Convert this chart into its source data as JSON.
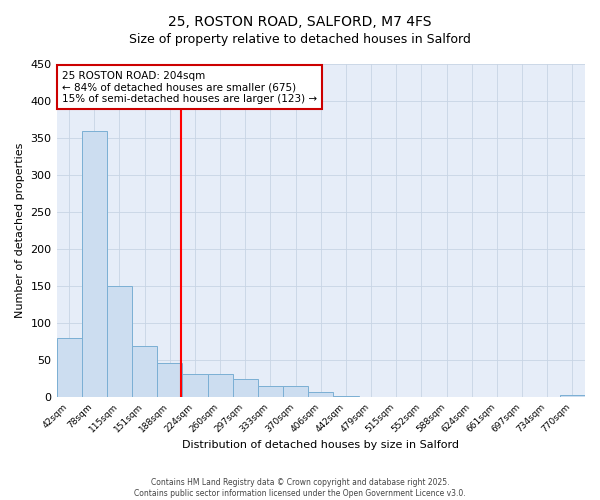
{
  "title1": "25, ROSTON ROAD, SALFORD, M7 4FS",
  "title2": "Size of property relative to detached houses in Salford",
  "xlabel": "Distribution of detached houses by size in Salford",
  "ylabel": "Number of detached properties",
  "categories": [
    "42sqm",
    "78sqm",
    "115sqm",
    "151sqm",
    "188sqm",
    "224sqm",
    "260sqm",
    "297sqm",
    "333sqm",
    "370sqm",
    "406sqm",
    "442sqm",
    "479sqm",
    "515sqm",
    "552sqm",
    "588sqm",
    "624sqm",
    "661sqm",
    "697sqm",
    "734sqm",
    "770sqm"
  ],
  "values": [
    80,
    360,
    150,
    70,
    47,
    32,
    32,
    25,
    15,
    15,
    7,
    2,
    1,
    1,
    1,
    0,
    0,
    0,
    0,
    0,
    3
  ],
  "bar_color": "#ccddf0",
  "bar_edge_color": "#7bafd4",
  "grid_color": "#c8d4e4",
  "bg_color": "#e6edf8",
  "annotation_text": "25 ROSTON ROAD: 204sqm\n← 84% of detached houses are smaller (675)\n15% of semi-detached houses are larger (123) →",
  "annotation_box_color": "#ffffff",
  "annotation_box_edge": "#cc0000",
  "ylim": [
    0,
    450
  ],
  "yticks": [
    0,
    50,
    100,
    150,
    200,
    250,
    300,
    350,
    400,
    450
  ],
  "footer1": "Contains HM Land Registry data © Crown copyright and database right 2025.",
  "footer2": "Contains public sector information licensed under the Open Government Licence v3.0."
}
